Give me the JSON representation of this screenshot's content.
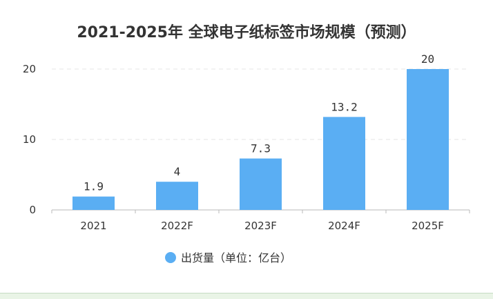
{
  "chart_data": {
    "type": "bar",
    "title": "2021-2025年 全球电子纸标签市场规模（预测）",
    "categories": [
      "2021",
      "2022F",
      "2023F",
      "2024F",
      "2025F"
    ],
    "series": [
      {
        "name": "出货量（单位：亿台）",
        "values": [
          1.9,
          4,
          7.3,
          13.2,
          20
        ],
        "data_labels": [
          "1.9",
          "4",
          "7.3",
          "13.2",
          "20"
        ]
      }
    ],
    "ylim": [
      0,
      20
    ],
    "yticks": [
      0,
      10,
      20
    ],
    "grid": true,
    "legend_position": "bottom",
    "colors": {
      "bar": "#5aaef3",
      "grid": "#e6e6e6",
      "axis": "#b8b8b8",
      "text": "#333333",
      "footer": "#e9f4e6"
    }
  }
}
